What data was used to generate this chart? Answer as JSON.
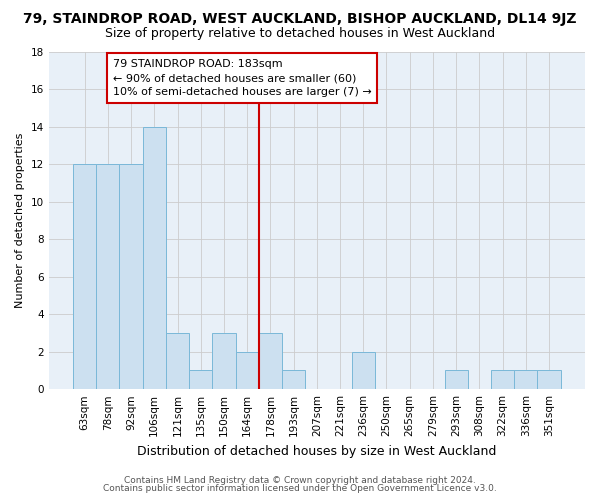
{
  "title": "79, STAINDROP ROAD, WEST AUCKLAND, BISHOP AUCKLAND, DL14 9JZ",
  "subtitle": "Size of property relative to detached houses in West Auckland",
  "xlabel": "Distribution of detached houses by size in West Auckland",
  "ylabel": "Number of detached properties",
  "categories": [
    "63sqm",
    "78sqm",
    "92sqm",
    "106sqm",
    "121sqm",
    "135sqm",
    "150sqm",
    "164sqm",
    "178sqm",
    "193sqm",
    "207sqm",
    "221sqm",
    "236sqm",
    "250sqm",
    "265sqm",
    "279sqm",
    "293sqm",
    "308sqm",
    "322sqm",
    "336sqm",
    "351sqm"
  ],
  "values": [
    12,
    12,
    12,
    14,
    3,
    1,
    3,
    2,
    3,
    1,
    0,
    0,
    2,
    0,
    0,
    0,
    1,
    0,
    1,
    1,
    1
  ],
  "bar_color": "#cce0f0",
  "bar_edge_color": "#7ab8d8",
  "grid_color": "#cccccc",
  "red_line_x": 7.5,
  "red_line_color": "#cc0000",
  "annotation_line1": "79 STAINDROP ROAD: 183sqm",
  "annotation_line2": "← 90% of detached houses are smaller (60)",
  "annotation_line3": "10% of semi-detached houses are larger (7) →",
  "annotation_box_color": "#ffffff",
  "annotation_box_edge_color": "#cc0000",
  "ylim": [
    0,
    18
  ],
  "yticks": [
    0,
    2,
    4,
    6,
    8,
    10,
    12,
    14,
    16,
    18
  ],
  "footer_line1": "Contains HM Land Registry data © Crown copyright and database right 2024.",
  "footer_line2": "Contains public sector information licensed under the Open Government Licence v3.0.",
  "background_color": "#ffffff",
  "plot_bg_color": "#e8f0f8",
  "title_fontsize": 10,
  "subtitle_fontsize": 9,
  "xlabel_fontsize": 9,
  "ylabel_fontsize": 8,
  "tick_fontsize": 7.5,
  "annotation_fontsize": 8,
  "footer_fontsize": 6.5
}
